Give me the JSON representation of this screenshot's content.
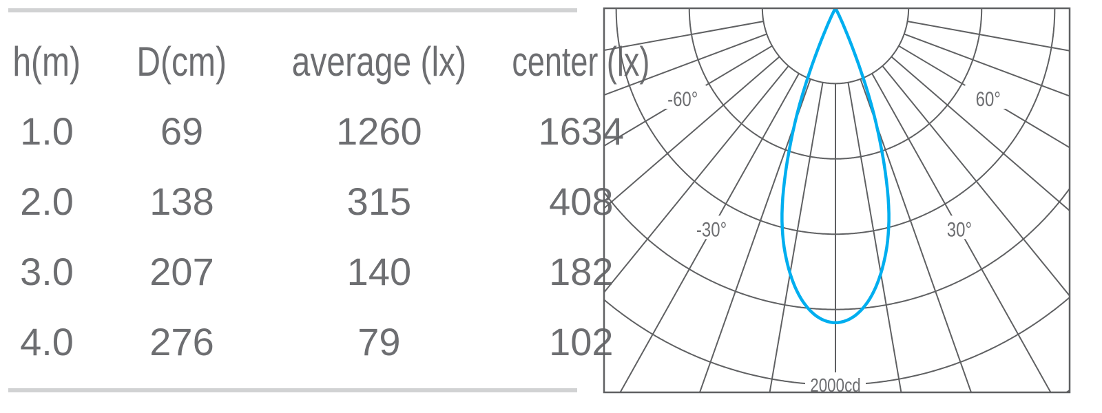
{
  "table": {
    "headers": [
      "h(m)",
      "D(cm)",
      "average (lx)",
      "center (lx)"
    ],
    "rows": [
      [
        "1.0",
        "69",
        "1260",
        "1634"
      ],
      [
        "2.0",
        "138",
        "315",
        "408"
      ],
      [
        "3.0",
        "207",
        "140",
        "182"
      ],
      [
        "4.0",
        "276",
        "79",
        "102"
      ]
    ]
  },
  "chart_data": {
    "type": "polar",
    "title": "",
    "angle_labels": [
      "-60°",
      "60°",
      "-30°",
      "30°"
    ],
    "radial_label": "2000cd",
    "radial_max_cd": 2000,
    "ring_step_cd": 400,
    "spoke_step_deg": 10,
    "series_color": "#00aeef",
    "grid_color": "#5f6062",
    "series": [
      {
        "angles_deg": [
          -30,
          -25,
          -20,
          -15,
          -10,
          -5,
          0,
          5,
          10,
          15,
          20,
          25,
          30
        ],
        "candela": [
          0,
          150,
          650,
          1130,
          1430,
          1610,
          1670,
          1610,
          1430,
          1130,
          650,
          150,
          0
        ]
      }
    ]
  }
}
